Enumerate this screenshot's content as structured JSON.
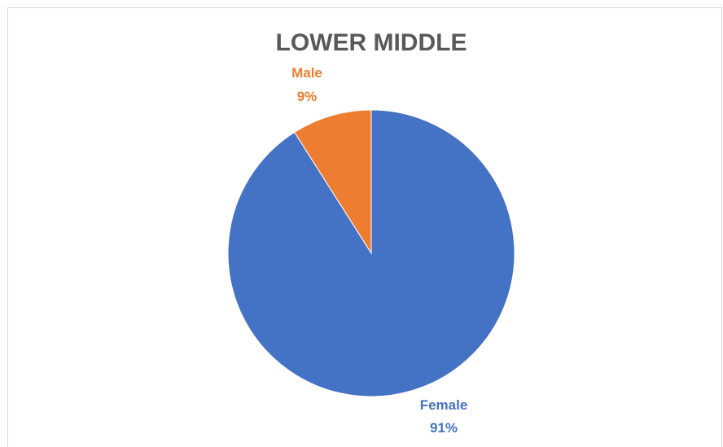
{
  "chart_data": {
    "type": "pie",
    "title": "LOWER MIDDLE",
    "slices": [
      {
        "label": "Female",
        "value": 91,
        "value_label": "91%",
        "color": "#4472C4"
      },
      {
        "label": "Male",
        "value": 9,
        "value_label": "9%",
        "color": "#ED7D31"
      }
    ],
    "start_angle_deg": 0,
    "direction": "clockwise",
    "legend": "none",
    "data_labels": "outside, category name and percentage"
  }
}
